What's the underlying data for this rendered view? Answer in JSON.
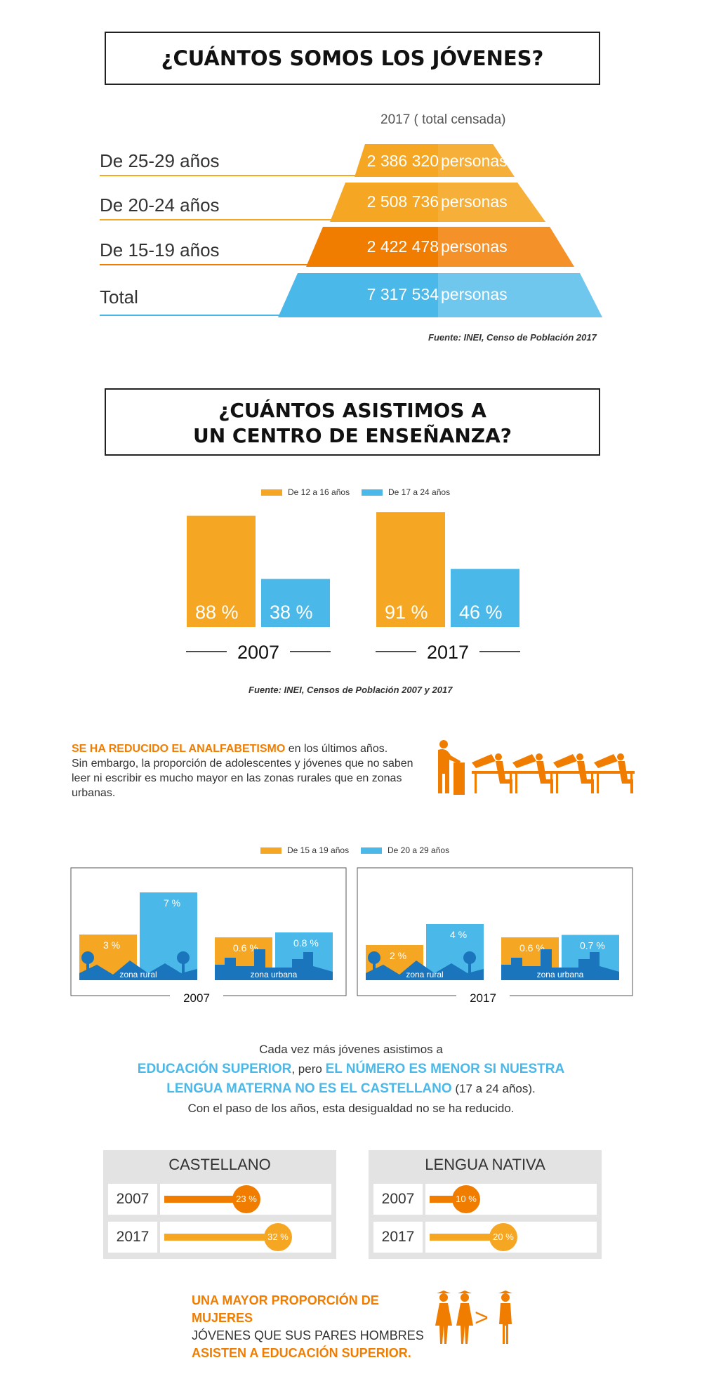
{
  "section1": {
    "title": "¿CUÁNTOS SOMOS LOS JÓVENES?",
    "subtitle": "2017 ( total censada)",
    "rows": [
      {
        "label": "De 25-29 años",
        "value": "2 386 320",
        "unit": "personas"
      },
      {
        "label": "De 20-24 años",
        "value": "2 508 736",
        "unit": "personas"
      },
      {
        "label": "De 15-19 años",
        "value": "2 422 478",
        "unit": "personas"
      },
      {
        "label": "Total",
        "value": "7 317 534",
        "unit": "personas"
      }
    ],
    "source": "Fuente: INEI, Censo de Población 2017"
  },
  "section2": {
    "title_line1": "¿CUÁNTOS ASISTIMOS A",
    "title_line2": "UN CENTRO DE ENSEÑANZA?",
    "source": "Fuente: INEI, Censos de Población 2007 y 2017"
  },
  "section3": {
    "highlight": "SE HA REDUCIDO EL ANALFABETISMO",
    "text_after": " en los últimos años.",
    "text_body": "Sin embargo, la proporción de adolescentes y jóvenes que no saben leer ni escribir es mucho mayor en las zonas rurales que en zonas urbanas.",
    "zone_rural": "zona rural",
    "zone_urbana": "zona urbana"
  },
  "section4": {
    "line1": "Cada vez más jóvenes asistimos a",
    "hl1": "EDUCACIÓN SUPERIOR",
    "mid": ", pero ",
    "hl2": "EL NÚMERO ES MENOR SI NUESTRA",
    "hl3": "LENGUA MATERNA NO ES EL CASTELLANO",
    "after": " (17 a 24 años).",
    "line4": "Con el paso de los años, esta desigualdad no se ha reducido.",
    "castellano": {
      "title": "CASTELLANO",
      "y1": "2007",
      "v1": "23 %",
      "y2": "2017",
      "v2": "32 %"
    },
    "nativa": {
      "title": "LENGUA NATIVA",
      "y1": "2007",
      "v1": "10 %",
      "y2": "2017",
      "v2": "20 %"
    }
  },
  "final": {
    "line1": "UNA MAYOR PROPORCIÓN DE MUJERES",
    "line2": "JÓVENES QUE SUS PARES HOMBRES",
    "line3": "ASISTEN A EDUCACIÓN SUPERIOR.",
    "symbol": ">"
  },
  "colors": {
    "orange": "#f07d00",
    "orange_light": "#f5a623",
    "blue": "#4ab8e8",
    "dark_blue": "#1a75bc"
  },
  "chart_data": [
    {
      "type": "bar",
      "categories": [
        "2007",
        "2017"
      ],
      "series": [
        {
          "name": "De 12 a 16 años",
          "values": [
            88,
            91
          ],
          "labels": [
            "88 %",
            "91 %"
          ]
        },
        {
          "name": "De 17 a 24 años",
          "values": [
            38,
            46
          ],
          "labels": [
            "38 %",
            "46 %"
          ]
        }
      ],
      "ylim": [
        0,
        100
      ]
    },
    {
      "type": "bar",
      "categories": [
        "zona rural",
        "zona urbana"
      ],
      "year": "2007",
      "series": [
        {
          "name": "De 15 a 19 años",
          "values": [
            3,
            0.6
          ],
          "labels": [
            "3 %",
            "0.6 %"
          ]
        },
        {
          "name": "De 20 a 29 años",
          "values": [
            7,
            0.8
          ],
          "labels": [
            "7 %",
            "0.8 %"
          ]
        }
      ]
    },
    {
      "type": "bar",
      "categories": [
        "zona rural",
        "zona urbana"
      ],
      "year": "2017",
      "series": [
        {
          "name": "De 15 a 19 años",
          "values": [
            2,
            0.6
          ],
          "labels": [
            "2 %",
            "0.6 %"
          ]
        },
        {
          "name": "De 20 a 29 años",
          "values": [
            4,
            0.7
          ],
          "labels": [
            "4 %",
            "0.7 %"
          ]
        }
      ]
    }
  ]
}
